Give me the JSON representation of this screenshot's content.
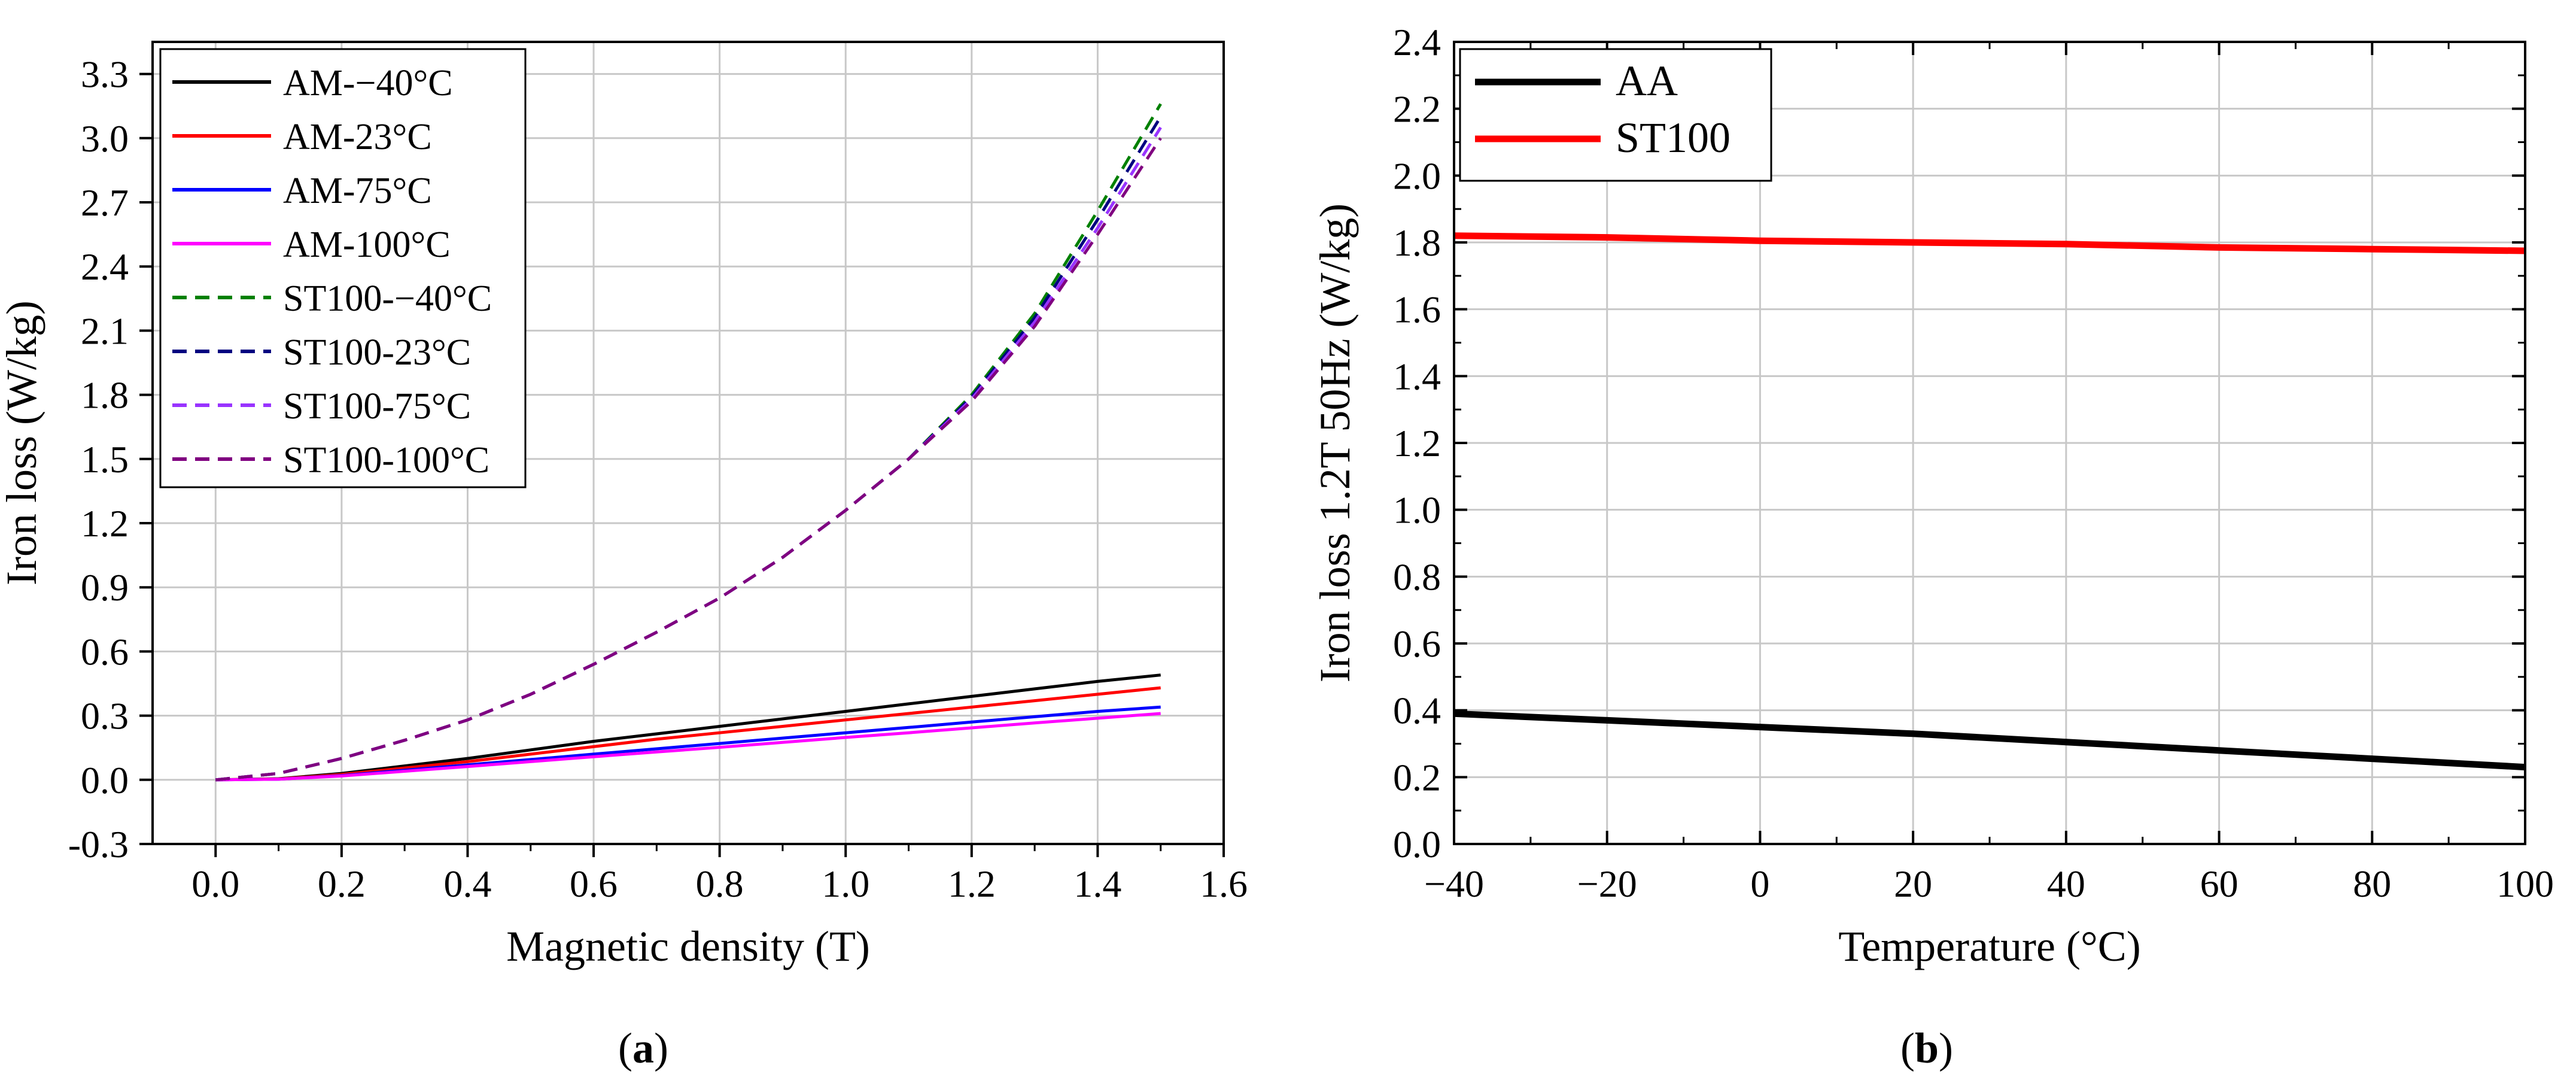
{
  "chart_data": [
    {
      "id": "a",
      "type": "line",
      "caption_open": "(",
      "caption_letter": "a",
      "caption_close": ")",
      "title": "",
      "xlabel": "Magnetic density (T)",
      "ylabel": "Iron loss (W/kg)",
      "xlim": [
        -0.1,
        1.6
      ],
      "ylim": [
        -0.3,
        3.45
      ],
      "xticks": [
        0.0,
        0.2,
        0.4,
        0.6,
        0.8,
        1.0,
        1.2,
        1.4,
        1.6
      ],
      "xtick_labels": [
        "0.0",
        "0.2",
        "0.4",
        "0.6",
        "0.8",
        "1.0",
        "1.2",
        "1.4",
        "1.6"
      ],
      "yticks": [
        -0.3,
        0.0,
        0.3,
        0.6,
        0.9,
        1.2,
        1.5,
        1.8,
        2.1,
        2.4,
        2.7,
        3.0,
        3.3
      ],
      "ytick_labels": [
        "-0.3",
        "0.0",
        "0.3",
        "0.6",
        "0.9",
        "1.2",
        "1.5",
        "1.8",
        "2.1",
        "2.4",
        "2.7",
        "3.0",
        "3.3"
      ],
      "grid": true,
      "legend_position": "top-left",
      "x": [
        0.0,
        0.1,
        0.2,
        0.3,
        0.4,
        0.5,
        0.6,
        0.7,
        0.8,
        0.9,
        1.0,
        1.1,
        1.2,
        1.3,
        1.4,
        1.5
      ],
      "series": [
        {
          "name": "AM-−40°C",
          "color": "#000000",
          "dash": "solid",
          "values": [
            0.0,
            0.005,
            0.03,
            0.065,
            0.1,
            0.14,
            0.18,
            0.215,
            0.25,
            0.285,
            0.32,
            0.355,
            0.39,
            0.425,
            0.46,
            0.49
          ]
        },
        {
          "name": "AM-23°C",
          "color": "#ff0000",
          "dash": "solid",
          "values": [
            0.0,
            0.004,
            0.025,
            0.055,
            0.085,
            0.12,
            0.155,
            0.19,
            0.22,
            0.25,
            0.28,
            0.31,
            0.34,
            0.37,
            0.4,
            0.43
          ]
        },
        {
          "name": "AM-75°C",
          "color": "#0000ff",
          "dash": "solid",
          "values": [
            0.0,
            0.003,
            0.02,
            0.045,
            0.07,
            0.095,
            0.12,
            0.145,
            0.17,
            0.195,
            0.22,
            0.245,
            0.27,
            0.295,
            0.32,
            0.34
          ]
        },
        {
          "name": "AM-100°C",
          "color": "#ff00ff",
          "dash": "solid",
          "values": [
            0.0,
            0.003,
            0.018,
            0.04,
            0.062,
            0.085,
            0.108,
            0.13,
            0.152,
            0.175,
            0.198,
            0.22,
            0.243,
            0.266,
            0.288,
            0.31
          ]
        },
        {
          "name": "ST100-−40°C",
          "color": "#008000",
          "dash": "dashed",
          "values": [
            0.0,
            0.03,
            0.1,
            0.185,
            0.28,
            0.4,
            0.54,
            0.69,
            0.85,
            1.04,
            1.26,
            1.5,
            1.8,
            2.18,
            2.66,
            3.16
          ]
        },
        {
          "name": "ST100-23°C",
          "color": "#000080",
          "dash": "dashed",
          "values": [
            0.0,
            0.03,
            0.1,
            0.185,
            0.28,
            0.4,
            0.54,
            0.69,
            0.85,
            1.04,
            1.26,
            1.5,
            1.79,
            2.16,
            2.62,
            3.1
          ]
        },
        {
          "name": "ST100-75°C",
          "color": "#9933ff",
          "dash": "dashed",
          "values": [
            0.0,
            0.03,
            0.1,
            0.185,
            0.28,
            0.4,
            0.54,
            0.69,
            0.85,
            1.04,
            1.26,
            1.5,
            1.78,
            2.14,
            2.58,
            3.05
          ]
        },
        {
          "name": "ST100-100°C",
          "color": "#800080",
          "dash": "dashed",
          "values": [
            0.0,
            0.03,
            0.1,
            0.185,
            0.28,
            0.4,
            0.54,
            0.69,
            0.85,
            1.04,
            1.26,
            1.5,
            1.77,
            2.12,
            2.55,
            3.0
          ]
        }
      ]
    },
    {
      "id": "b",
      "type": "line",
      "caption_open": "(",
      "caption_letter": "b",
      "caption_close": ")",
      "title": "",
      "xlabel": "Temperature (°C)",
      "ylabel": "Iron loss 1.2T 50Hz (W/kg)",
      "xlim": [
        -40,
        100
      ],
      "ylim": [
        0.0,
        2.4
      ],
      "xticks": [
        -40,
        -20,
        0,
        20,
        40,
        60,
        80,
        100
      ],
      "xtick_labels": [
        "−40",
        "−20",
        "0",
        "20",
        "40",
        "60",
        "80",
        "100"
      ],
      "yticks": [
        0.0,
        0.2,
        0.4,
        0.6,
        0.8,
        1.0,
        1.2,
        1.4,
        1.6,
        1.8,
        2.0,
        2.2,
        2.4
      ],
      "ytick_labels": [
        "0.0",
        "0.2",
        "0.4",
        "0.6",
        "0.8",
        "1.0",
        "1.2",
        "1.4",
        "1.6",
        "1.8",
        "2.0",
        "2.2",
        "2.4"
      ],
      "grid": true,
      "legend_position": "top-left",
      "x": [
        -40,
        -20,
        0,
        20,
        40,
        60,
        80,
        100
      ],
      "series": [
        {
          "name": "AA",
          "color": "#000000",
          "dash": "solid",
          "values": [
            0.39,
            0.37,
            0.35,
            0.33,
            0.305,
            0.28,
            0.255,
            0.23
          ]
        },
        {
          "name": "ST100",
          "color": "#ff0000",
          "dash": "solid",
          "values": [
            1.82,
            1.815,
            1.805,
            1.8,
            1.795,
            1.785,
            1.78,
            1.775
          ]
        }
      ]
    }
  ]
}
